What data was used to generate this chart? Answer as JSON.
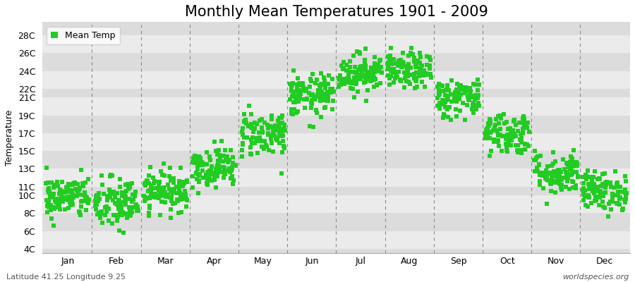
{
  "title": "Monthly Mean Temperatures 1901 - 2009",
  "ylabel": "Temperature",
  "xlabel_months": [
    "Jan",
    "Feb",
    "Mar",
    "Apr",
    "May",
    "Jun",
    "Jul",
    "Aug",
    "Sep",
    "Oct",
    "Nov",
    "Dec"
  ],
  "footer_left": "Latitude 41.25 Longitude 9.25",
  "footer_right": "worldspecies.org",
  "legend_label": "Mean Temp",
  "ytick_labels": [
    "4C",
    "6C",
    "8C",
    "10C",
    "11C",
    "13C",
    "15C",
    "17C",
    "19C",
    "21C",
    "22C",
    "24C",
    "26C",
    "28C"
  ],
  "ytick_values": [
    4,
    6,
    8,
    10,
    11,
    13,
    15,
    17,
    19,
    21,
    22,
    24,
    26,
    28
  ],
  "ylim": [
    3.5,
    29.5
  ],
  "marker_color": "#22CC22",
  "marker_size": 4,
  "background_color": "#FFFFFF",
  "plot_bg_color": "#EBEBEB",
  "band_light": "#EBEBEB",
  "band_dark": "#DCDCDC",
  "vline_color": "#888888",
  "title_fontsize": 15,
  "axis_label_fontsize": 9,
  "tick_fontsize": 9,
  "monthly_means": [
    9.8,
    9.0,
    10.5,
    13.2,
    17.0,
    21.2,
    23.8,
    24.0,
    21.0,
    17.0,
    12.5,
    10.5
  ],
  "monthly_stds": [
    1.2,
    1.5,
    1.1,
    1.1,
    1.3,
    1.2,
    1.1,
    1.0,
    1.1,
    1.2,
    1.2,
    1.1
  ],
  "n_years": 109
}
